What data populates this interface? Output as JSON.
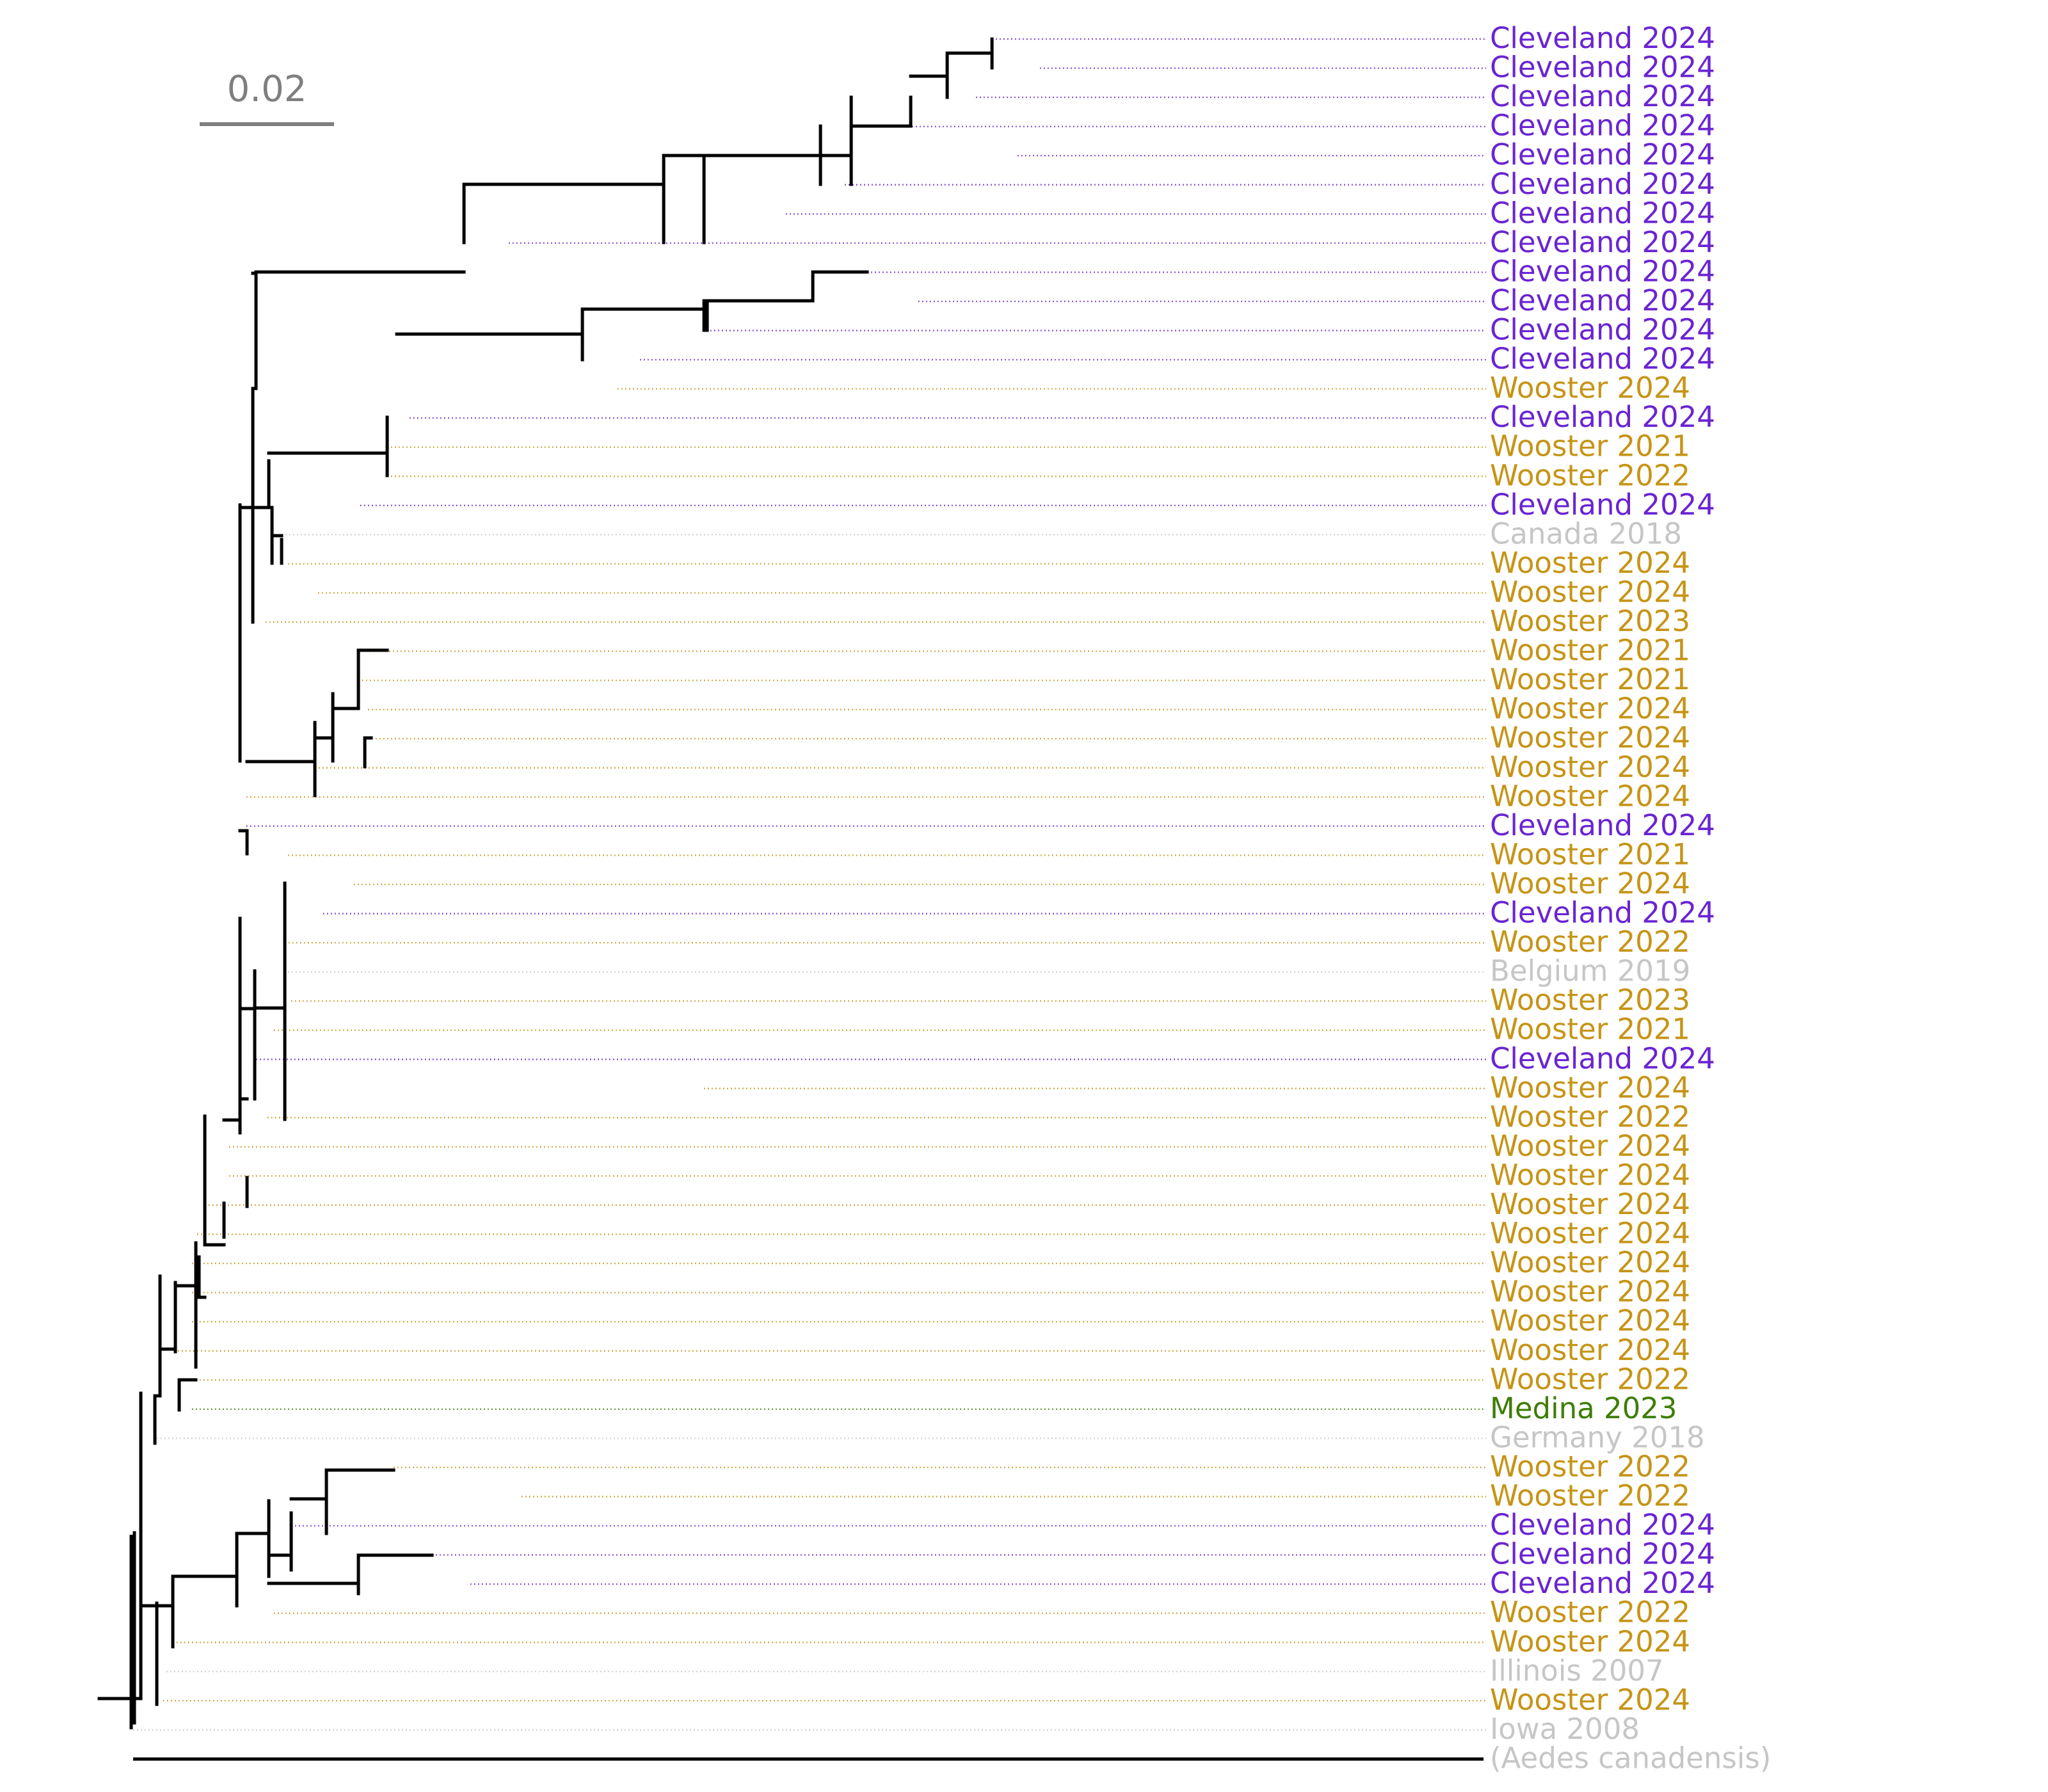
{
  "colors": {
    "branch": "#000000",
    "scale": "#7f7f7f",
    "Cleveland": "#6a24d2",
    "Wooster": "#c69416",
    "Medina": "#3e7d06",
    "Other": "#c6c6c6"
  },
  "scale_bar": {
    "label": "0.02",
    "length": 0.02
  },
  "tips": [
    {
      "label": "Cleveland 2024",
      "group": "Cleveland"
    },
    {
      "label": "Cleveland 2024",
      "group": "Cleveland"
    },
    {
      "label": "Cleveland 2024",
      "group": "Cleveland"
    },
    {
      "label": "Cleveland 2024",
      "group": "Cleveland"
    },
    {
      "label": "Cleveland 2024",
      "group": "Cleveland"
    },
    {
      "label": "Cleveland 2024",
      "group": "Cleveland"
    },
    {
      "label": "Cleveland 2024",
      "group": "Cleveland"
    },
    {
      "label": "Cleveland 2024",
      "group": "Cleveland"
    },
    {
      "label": "Cleveland 2024",
      "group": "Cleveland"
    },
    {
      "label": "Cleveland 2024",
      "group": "Cleveland"
    },
    {
      "label": "Cleveland 2024",
      "group": "Cleveland"
    },
    {
      "label": "Cleveland 2024",
      "group": "Cleveland"
    },
    {
      "label": "Wooster 2024",
      "group": "Wooster"
    },
    {
      "label": "Cleveland 2024",
      "group": "Cleveland"
    },
    {
      "label": "Wooster 2021",
      "group": "Wooster"
    },
    {
      "label": "Wooster 2022",
      "group": "Wooster"
    },
    {
      "label": "Cleveland 2024",
      "group": "Cleveland"
    },
    {
      "label": "Canada 2018",
      "group": "Other"
    },
    {
      "label": "Wooster 2024",
      "group": "Wooster"
    },
    {
      "label": "Wooster 2024",
      "group": "Wooster"
    },
    {
      "label": "Wooster 2023",
      "group": "Wooster"
    },
    {
      "label": "Wooster 2021",
      "group": "Wooster"
    },
    {
      "label": "Wooster 2021",
      "group": "Wooster"
    },
    {
      "label": "Wooster 2024",
      "group": "Wooster"
    },
    {
      "label": "Wooster 2024",
      "group": "Wooster"
    },
    {
      "label": "Wooster 2024",
      "group": "Wooster"
    },
    {
      "label": "Wooster 2024",
      "group": "Wooster"
    },
    {
      "label": "Cleveland 2024",
      "group": "Cleveland"
    },
    {
      "label": "Wooster 2021",
      "group": "Wooster"
    },
    {
      "label": "Wooster 2024",
      "group": "Wooster"
    },
    {
      "label": "Cleveland 2024",
      "group": "Cleveland"
    },
    {
      "label": "Wooster 2022",
      "group": "Wooster"
    },
    {
      "label": "Belgium 2019",
      "group": "Other"
    },
    {
      "label": "Wooster 2023",
      "group": "Wooster"
    },
    {
      "label": "Wooster 2021",
      "group": "Wooster"
    },
    {
      "label": "Cleveland 2024",
      "group": "Cleveland"
    },
    {
      "label": "Wooster 2024",
      "group": "Wooster"
    },
    {
      "label": "Wooster 2022",
      "group": "Wooster"
    },
    {
      "label": "Wooster 2024",
      "group": "Wooster"
    },
    {
      "label": "Wooster 2024",
      "group": "Wooster"
    },
    {
      "label": "Wooster 2024",
      "group": "Wooster"
    },
    {
      "label": "Wooster 2024",
      "group": "Wooster"
    },
    {
      "label": "Wooster 2024",
      "group": "Wooster"
    },
    {
      "label": "Wooster 2024",
      "group": "Wooster"
    },
    {
      "label": "Wooster 2024",
      "group": "Wooster"
    },
    {
      "label": "Wooster 2024",
      "group": "Wooster"
    },
    {
      "label": "Wooster 2022",
      "group": "Wooster"
    },
    {
      "label": "Medina 2023",
      "group": "Medina"
    },
    {
      "label": "Germany 2018",
      "group": "Other"
    },
    {
      "label": "Wooster 2022",
      "group": "Wooster"
    },
    {
      "label": "Wooster 2022",
      "group": "Wooster"
    },
    {
      "label": "Cleveland 2024",
      "group": "Cleveland"
    },
    {
      "label": "Cleveland 2024",
      "group": "Cleveland"
    },
    {
      "label": "Cleveland 2024",
      "group": "Cleveland"
    },
    {
      "label": "Wooster 2022",
      "group": "Wooster"
    },
    {
      "label": "Wooster 2024",
      "group": "Wooster"
    },
    {
      "label": "Illinois 2007",
      "group": "Other"
    },
    {
      "label": "Wooster 2024",
      "group": "Wooster"
    },
    {
      "label": "Iowa 2008",
      "group": "Other"
    },
    {
      "label": "(Aedes canadensis)",
      "group": "Other"
    }
  ]
}
